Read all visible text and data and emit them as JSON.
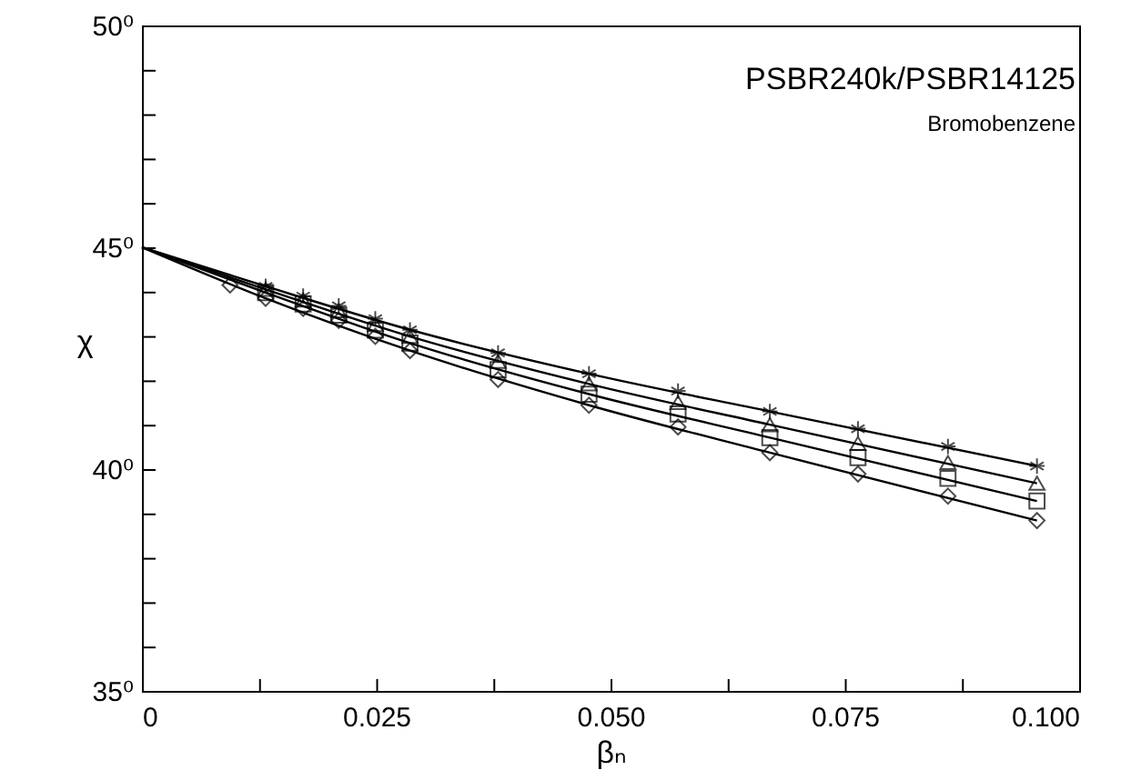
{
  "chart_data": {
    "type": "scatter",
    "xlabel": "βₙ",
    "ylabel": "χ",
    "annotations": [
      "PSBR240k/PSBR14125",
      "Bromobenzene"
    ],
    "xlim": [
      0,
      0.1
    ],
    "ylim": [
      35,
      50
    ],
    "xticks": [
      0,
      {
        "value": 0.0125,
        "label": null
      },
      0.025,
      {
        "value": 0.0375,
        "label": null
      },
      {
        "value": 0.05,
        "label": "0.050"
      },
      {
        "value": 0.0625,
        "label": null
      },
      0.075,
      {
        "value": 0.0875,
        "label": null
      },
      {
        "value": 0.1,
        "label": "0.100"
      }
    ],
    "yticks": [
      {
        "value": 35,
        "label": "35⁰"
      },
      {
        "value": 36,
        "label": null
      },
      {
        "value": 37,
        "label": null
      },
      {
        "value": 38,
        "label": null
      },
      {
        "value": 39,
        "label": null
      },
      {
        "value": 40,
        "label": "40⁰"
      },
      {
        "value": 41,
        "label": null
      },
      {
        "value": 42,
        "label": null
      },
      {
        "value": 43,
        "label": null
      },
      {
        "value": 44,
        "label": null
      },
      {
        "value": 45,
        "label": "45⁰"
      },
      {
        "value": 46,
        "label": null
      },
      {
        "value": 47,
        "label": null
      },
      {
        "value": 48,
        "label": null
      },
      {
        "value": 49,
        "label": null
      },
      {
        "value": 50,
        "label": "50⁰"
      }
    ],
    "grid": false,
    "series": [
      {
        "marker": "cross",
        "color": "#000000",
        "x": [
          0.0132,
          0.0172,
          0.021,
          0.0249,
          0.0286,
          0.038,
          0.0477,
          0.0572,
          0.067,
          0.0764,
          0.086,
          0.0955
        ],
        "values": [
          44.12,
          43.9,
          43.68,
          43.39,
          43.14,
          42.62,
          42.15,
          41.76,
          41.3,
          40.91,
          40.51,
          40.07
        ]
      },
      {
        "marker": "triangle",
        "color": "#000000",
        "x": [
          0.0132,
          0.0172,
          0.021,
          0.0249,
          0.0286,
          0.038,
          0.0477,
          0.0572,
          0.067,
          0.0764,
          0.086,
          0.0955
        ],
        "values": [
          44.05,
          43.81,
          43.57,
          43.26,
          42.99,
          42.43,
          41.92,
          41.5,
          41.0,
          40.58,
          40.15,
          39.68
        ]
      },
      {
        "marker": "square",
        "color": "#000000",
        "x": [
          0.0132,
          0.0172,
          0.021,
          0.0249,
          0.0286,
          0.038,
          0.0477,
          0.0572,
          0.067,
          0.0764,
          0.086,
          0.0955
        ],
        "values": [
          43.98,
          43.72,
          43.47,
          43.13,
          42.84,
          42.24,
          41.69,
          41.24,
          40.71,
          40.26,
          39.79,
          39.28
        ]
      },
      {
        "marker": "diamond",
        "color": "#000000",
        "x": [
          0.0094,
          0.0132,
          0.0172,
          0.021,
          0.0249,
          0.0286,
          0.038,
          0.0477,
          0.0572,
          0.067,
          0.0764,
          0.086,
          0.0955
        ],
        "values": [
          44.15,
          43.85,
          43.62,
          43.35,
          42.99,
          42.67,
          42.02,
          41.44,
          40.95,
          40.37,
          39.89,
          39.39,
          38.84
        ]
      },
      {
        "type": "line",
        "marker": "none",
        "color": "#000000",
        "x": [
          0,
          0.0132,
          0.0286,
          0.0477,
          0.067,
          0.0955
        ],
        "values": [
          45,
          44.12,
          43.14,
          42.15,
          41.3,
          40.07
        ]
      },
      {
        "type": "line",
        "marker": "none",
        "color": "#000000",
        "x": [
          0,
          0.0132,
          0.0286,
          0.0477,
          0.067,
          0.0955
        ],
        "values": [
          45,
          44.05,
          42.99,
          41.92,
          41.0,
          39.68
        ]
      },
      {
        "type": "line",
        "marker": "none",
        "color": "#000000",
        "x": [
          0,
          0.0132,
          0.0286,
          0.0477,
          0.067,
          0.0955
        ],
        "values": [
          45,
          43.98,
          42.84,
          41.69,
          40.71,
          39.28
        ]
      },
      {
        "type": "line",
        "marker": "none",
        "color": "#000000",
        "x": [
          0,
          0.0132,
          0.0286,
          0.0477,
          0.067,
          0.0955
        ],
        "values": [
          45,
          43.85,
          42.67,
          41.44,
          40.37,
          38.84
        ]
      }
    ]
  }
}
